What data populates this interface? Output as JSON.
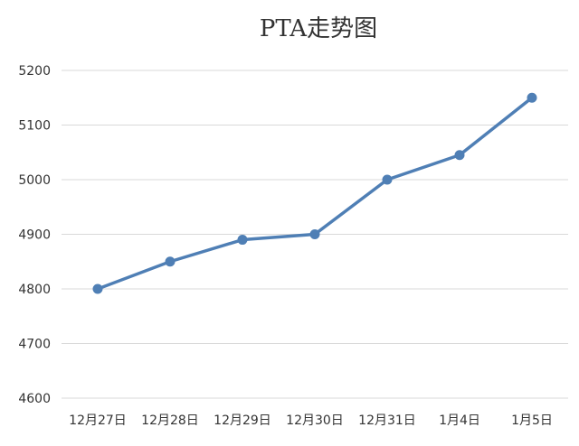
{
  "chart_data": {
    "type": "line",
    "title": "PTA走势图",
    "categories": [
      "12月27日",
      "12月28日",
      "12月29日",
      "12月30日",
      "12月31日",
      "1月4日",
      "1月5日"
    ],
    "series": [
      {
        "values": [
          4800,
          4850,
          4890,
          4900,
          5000,
          5045,
          5150
        ]
      }
    ],
    "ylim": [
      4600,
      5200
    ],
    "y_ticks": [
      4600,
      4700,
      4800,
      4900,
      5000,
      5100,
      5200
    ],
    "grid": true,
    "legend": "none",
    "colors": {
      "series": "#4f7fb5",
      "grid": "#d9d9d9",
      "text": "#333333"
    }
  }
}
